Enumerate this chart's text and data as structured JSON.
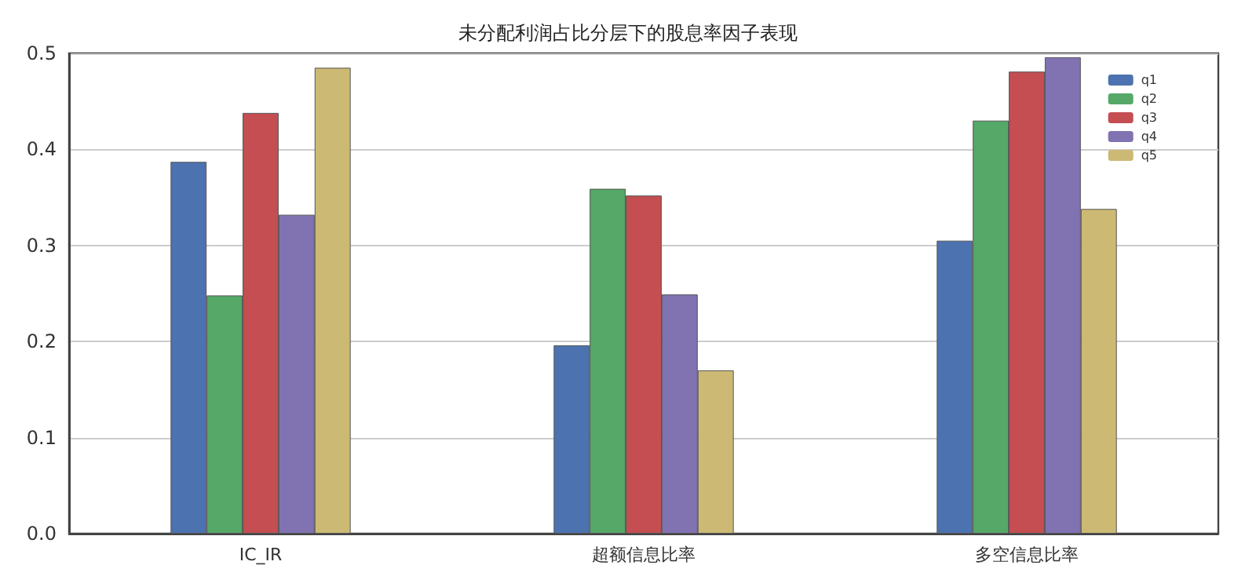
{
  "chart_data": {
    "type": "bar",
    "title": "未分配利润占比分层下的股息率因子表现",
    "categories": [
      "IC_IR",
      "超额信息比率",
      "多空信息比率"
    ],
    "series": [
      {
        "name": "q1",
        "color": "#4c72b0",
        "values": [
          0.387,
          0.196,
          0.305
        ]
      },
      {
        "name": "q2",
        "color": "#55a868",
        "values": [
          0.248,
          0.359,
          0.43
        ]
      },
      {
        "name": "q3",
        "color": "#c44e52",
        "values": [
          0.438,
          0.352,
          0.481
        ]
      },
      {
        "name": "q4",
        "color": "#8172b2",
        "values": [
          0.332,
          0.249,
          0.496
        ]
      },
      {
        "name": "q5",
        "color": "#ccb974",
        "values": [
          0.485,
          0.17,
          0.338
        ]
      }
    ],
    "ylim": [
      0,
      0.5
    ],
    "yticks": [
      {
        "value": 0,
        "label": "0.0"
      },
      0.1,
      0.2,
      0.3,
      0.4,
      0.5
    ],
    "grid": "y",
    "legend": "top right"
  }
}
